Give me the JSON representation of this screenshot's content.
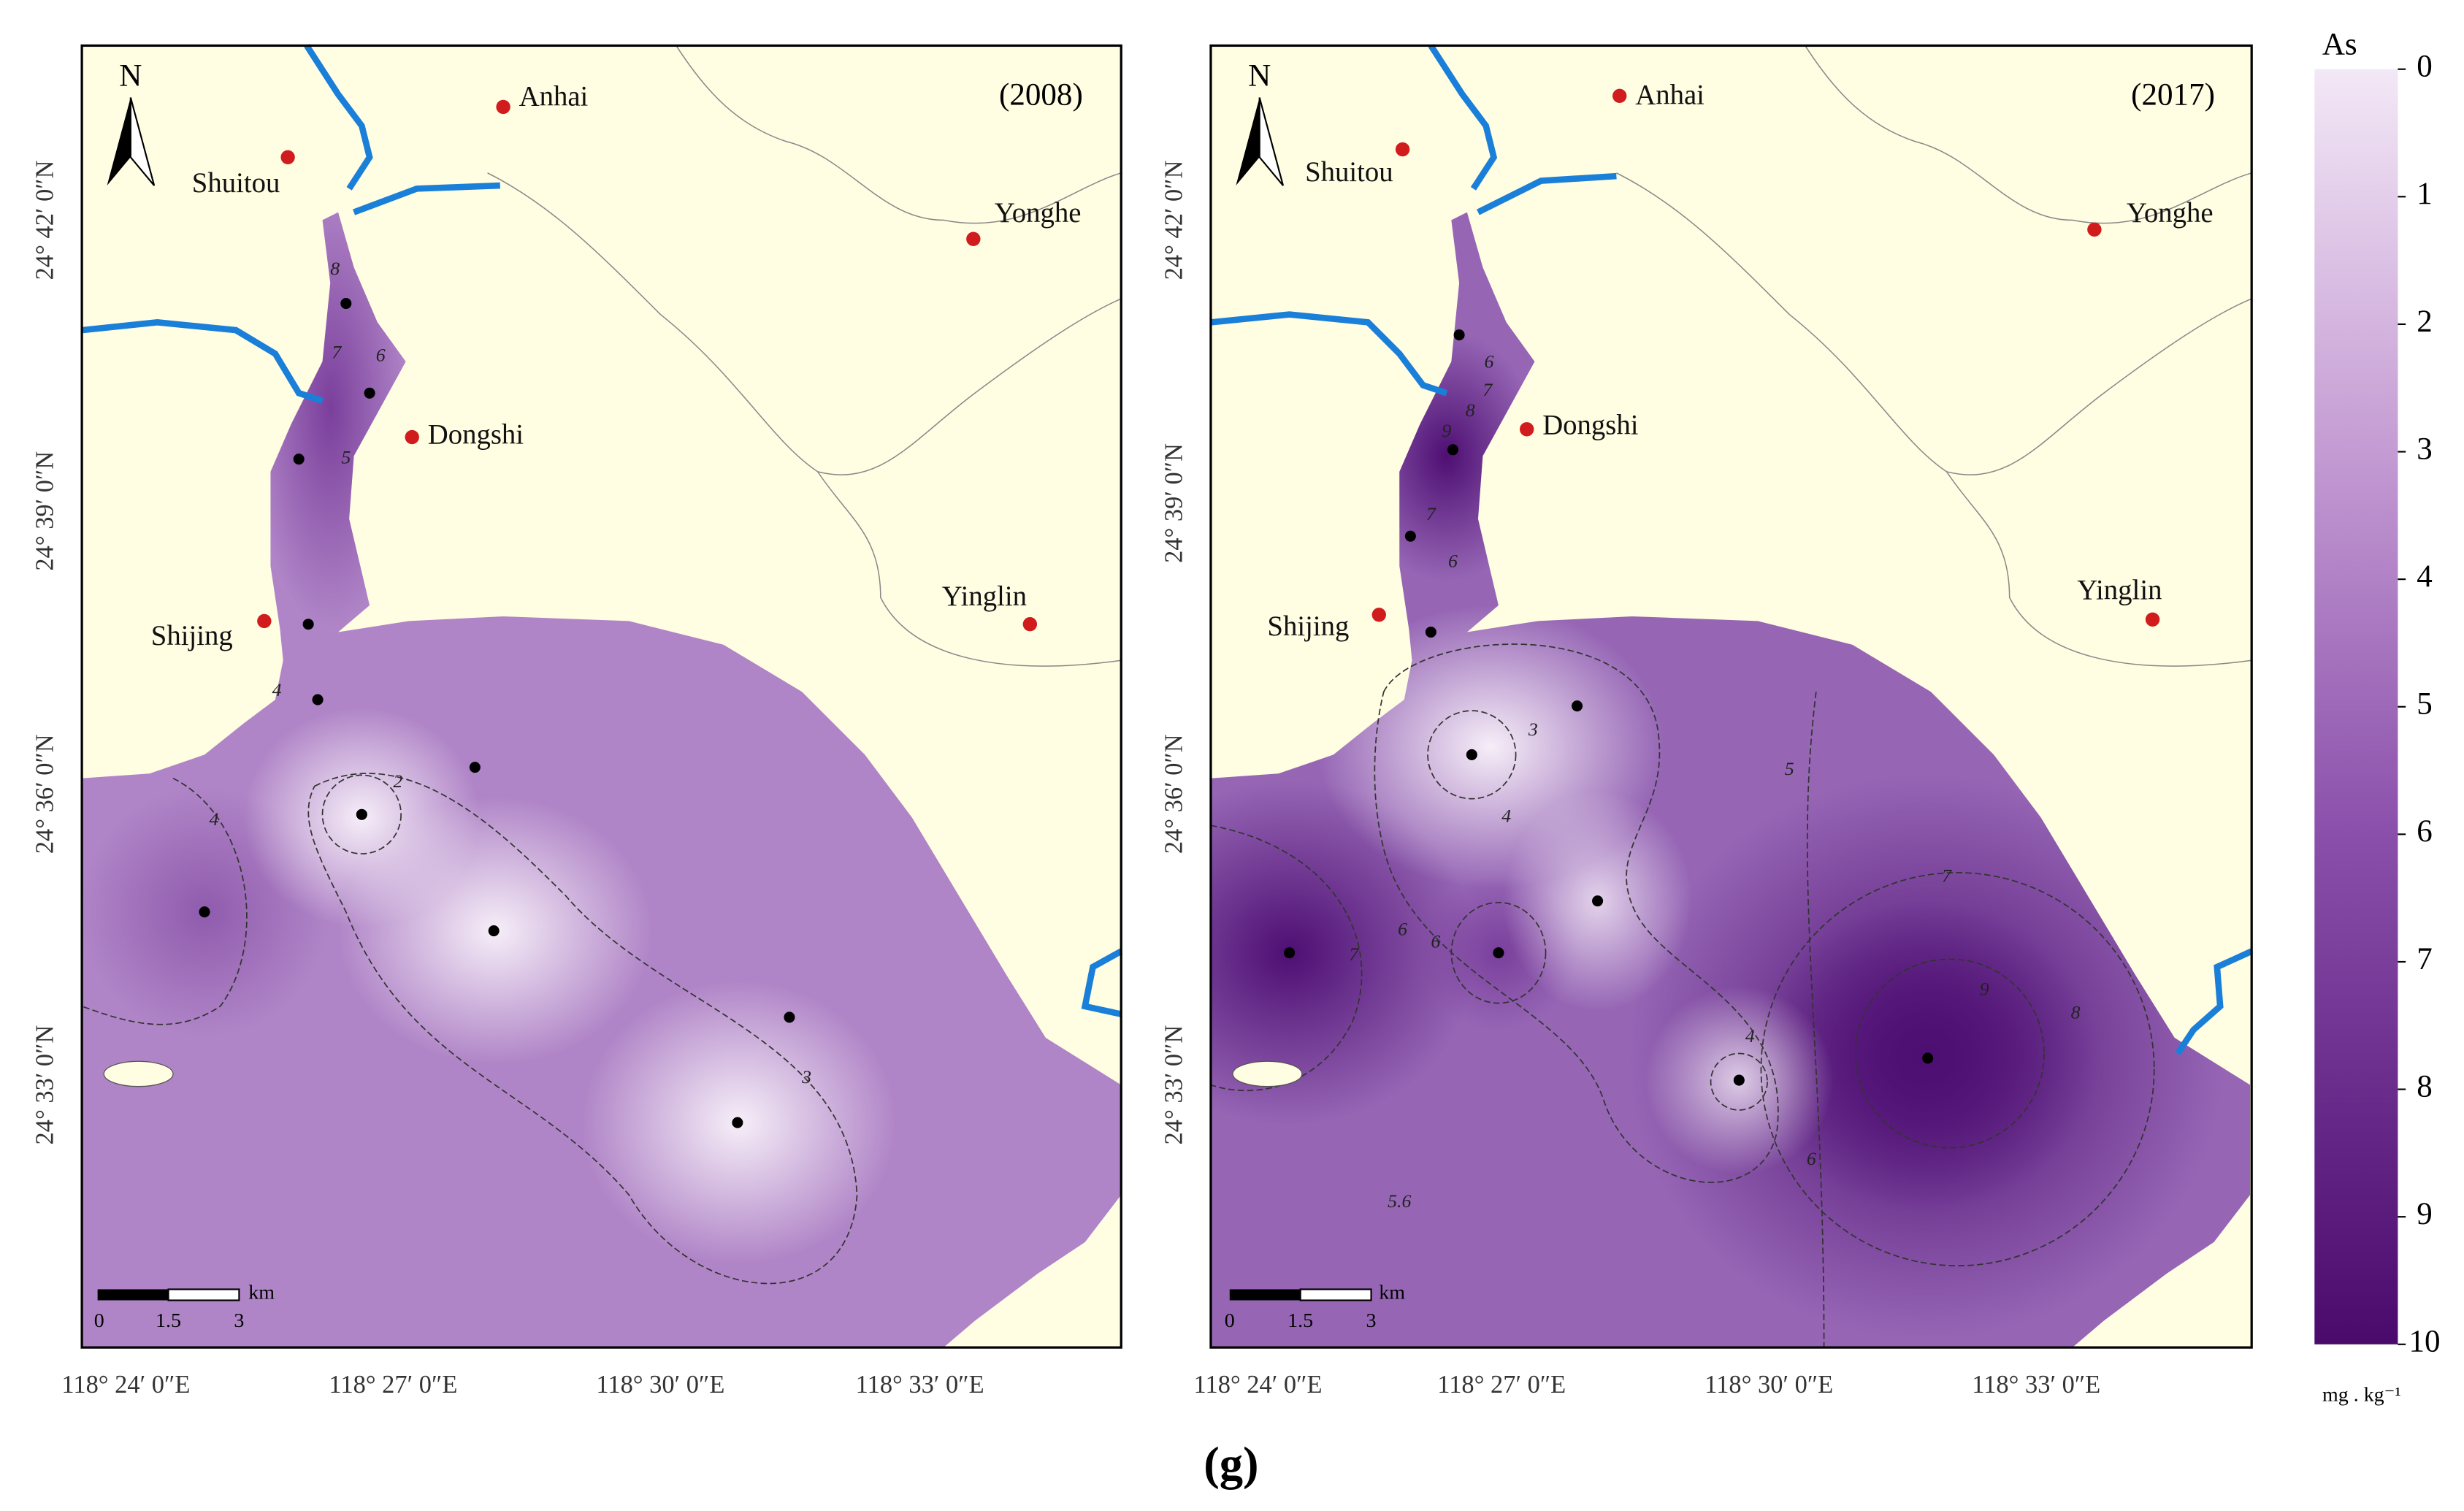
{
  "panels": [
    {
      "year": "(2008)",
      "north": "N",
      "places": [
        "Anhai",
        "Shuitou",
        "Yonghe",
        "Dongshi",
        "Shijing",
        "Yinglin"
      ],
      "lat_labels": [
        "24° 42′ 0″N",
        "24° 39′ 0″N",
        "24° 36′ 0″N",
        "24° 33′ 0″N"
      ],
      "lon_labels": [
        "118° 24′ 0″E",
        "118° 27′ 0″E",
        "118° 30′ 0″E",
        "118° 33′ 0″E"
      ],
      "contour_labels": [
        "8",
        "7",
        "6",
        "5",
        "4",
        "2",
        "4",
        "3"
      ],
      "scale": {
        "ticks": [
          "0",
          "1.5",
          "3"
        ],
        "unit": "km"
      }
    },
    {
      "year": "(2017)",
      "north": "N",
      "places": [
        "Anhai",
        "Shuitou",
        "Yonghe",
        "Dongshi",
        "Shijing",
        "Yinglin"
      ],
      "lat_labels": [
        "24° 42′ 0″N",
        "24° 39′ 0″N",
        "24° 36′ 0″N",
        "24° 33′ 0″N"
      ],
      "lon_labels": [
        "118° 24′ 0″E",
        "118° 27′ 0″E",
        "118° 30′ 0″E",
        "118° 33′ 0″E"
      ],
      "contour_labels": [
        "6",
        "7",
        "8",
        "9",
        "7",
        "6",
        "3",
        "4",
        "5",
        "6",
        "6",
        "7",
        "4",
        "6",
        "7",
        "9",
        "8",
        "5.6"
      ],
      "scale": {
        "ticks": [
          "0",
          "1.5",
          "3"
        ],
        "unit": "km"
      }
    }
  ],
  "legend": {
    "title": "As",
    "ticks": [
      0,
      1,
      2,
      3,
      4,
      5,
      6,
      7,
      8,
      9,
      10
    ],
    "unit": "mg . kg⁻¹"
  },
  "caption": "(g)"
}
